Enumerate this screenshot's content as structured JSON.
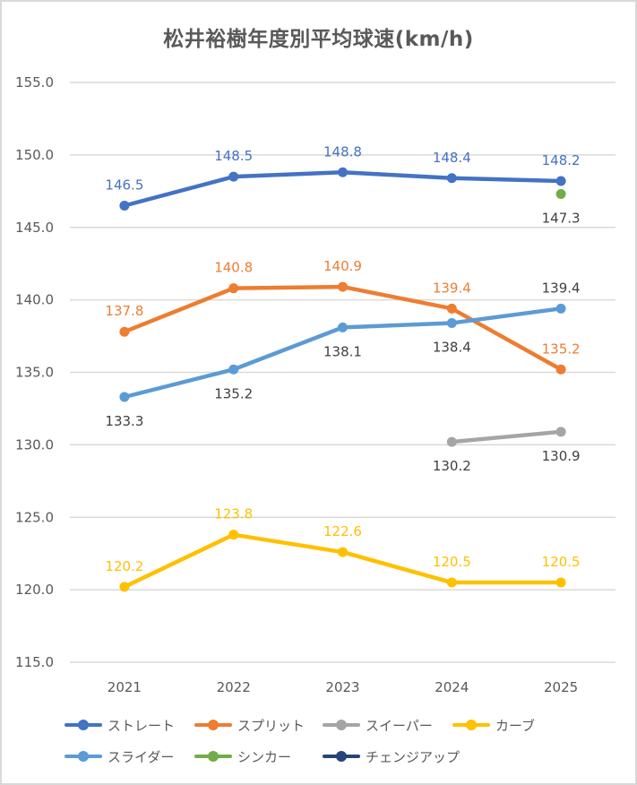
{
  "chart_data": {
    "type": "line",
    "title": "松井裕樹年度別平均球速(km/h)",
    "xlabel": "",
    "ylabel": "",
    "categories": [
      "2021",
      "2022",
      "2023",
      "2024",
      "2025"
    ],
    "ylim": [
      115.0,
      155.0
    ],
    "yticks": [
      "155.0",
      "150.0",
      "145.0",
      "140.0",
      "135.0",
      "130.0",
      "125.0",
      "120.0",
      "115.0"
    ],
    "ytick_values": [
      155,
      150,
      145,
      140,
      135,
      130,
      125,
      120,
      115
    ],
    "grid": true,
    "legend_position": "bottom",
    "series": [
      {
        "name": "ストレート",
        "color": "#4472C4",
        "label_color": "#4472C4",
        "label_pos": [
          "above",
          "above",
          "above",
          "above",
          "above"
        ],
        "values": [
          146.5,
          148.5,
          148.8,
          148.4,
          148.2
        ],
        "labels": [
          "146.5",
          "148.5",
          "148.8",
          "148.4",
          "148.2"
        ]
      },
      {
        "name": "スプリット",
        "color": "#ED7D31",
        "label_color": "#ED7D31",
        "label_pos": [
          "above",
          "above",
          "above",
          "above",
          "above"
        ],
        "values": [
          137.8,
          140.8,
          140.9,
          139.4,
          135.2
        ],
        "labels": [
          "137.8",
          "140.8",
          "140.9",
          "139.4",
          "135.2"
        ]
      },
      {
        "name": "スイーパー",
        "color": "#A5A5A5",
        "label_color": "#404040",
        "label_pos": [
          null,
          null,
          null,
          "below",
          "below"
        ],
        "values": [
          null,
          null,
          null,
          130.2,
          130.9
        ],
        "labels": [
          null,
          null,
          null,
          "130.2",
          "130.9"
        ]
      },
      {
        "name": "カーブ",
        "color": "#FFC000",
        "label_color": "#FFC000",
        "label_pos": [
          "above",
          "above",
          "above",
          "above",
          "above"
        ],
        "values": [
          120.2,
          123.8,
          122.6,
          120.5,
          120.5
        ],
        "labels": [
          "120.2",
          "123.8",
          "122.6",
          "120.5",
          "120.5"
        ]
      },
      {
        "name": "スライダー",
        "color": "#5B9BD5",
        "label_color": "#404040",
        "label_pos": [
          "below",
          "below",
          "below",
          "below",
          "above"
        ],
        "values": [
          133.3,
          135.2,
          138.1,
          138.4,
          139.4
        ],
        "labels": [
          "133.3",
          "135.2",
          "138.1",
          "138.4",
          "139.4"
        ]
      },
      {
        "name": "シンカー",
        "color": "#70AD47",
        "label_color": "#404040",
        "label_pos": [
          null,
          null,
          null,
          null,
          "below"
        ],
        "values": [
          null,
          null,
          null,
          null,
          147.3
        ],
        "labels": [
          null,
          null,
          null,
          null,
          "147.3"
        ]
      },
      {
        "name": "チェンジアップ",
        "color": "#264478",
        "label_color": "#264478",
        "label_pos": [
          null,
          null,
          null,
          null,
          null
        ],
        "values": [
          null,
          null,
          null,
          null,
          null
        ],
        "labels": [
          null,
          null,
          null,
          null,
          null
        ]
      }
    ]
  }
}
